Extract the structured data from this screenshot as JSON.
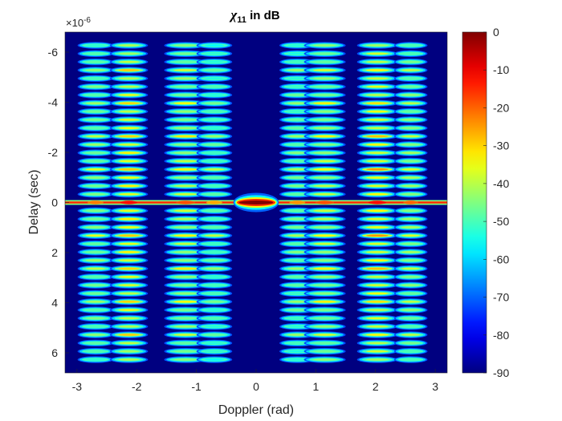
{
  "chart_data": {
    "type": "heatmap",
    "title_symbol": "χ",
    "title_subscript": "11",
    "title_suffix": " in dB",
    "xlabel": "Doppler (rad)",
    "ylabel": "Delay (sec)",
    "y_exponent_label": "×10",
    "y_exponent_power": "-6",
    "xlim": [
      -3.2,
      3.2
    ],
    "ylim": [
      -6.8,
      6.8
    ],
    "y_reversed": true,
    "x_ticks": [
      -3,
      -2,
      -1,
      0,
      1,
      2,
      3
    ],
    "x_tick_labels": [
      "-3",
      "-2",
      "-1",
      "0",
      "1",
      "2",
      "3"
    ],
    "y_ticks": [
      -6,
      -4,
      -2,
      0,
      2,
      4,
      6
    ],
    "y_tick_labels": [
      "-6",
      "-4",
      "-2",
      "0",
      "2",
      "4",
      "6"
    ],
    "colorbar": {
      "range": [
        -90,
        0
      ],
      "ticks": [
        0,
        -10,
        -20,
        -30,
        -40,
        -50,
        -60,
        -70,
        -80,
        -90
      ],
      "tick_labels": [
        "0",
        "-10",
        "-20",
        "-30",
        "-40",
        "-50",
        "-60",
        "-70",
        "-80",
        "-90"
      ],
      "colormap": "jet"
    },
    "background_level_db": -90,
    "doppler_lobe_columns": [
      {
        "center": -2.69,
        "half_width": 0.3,
        "peak_db": -32
      },
      {
        "center": -2.13,
        "half_width": 0.32,
        "peak_db": -22
      },
      {
        "center": -1.18,
        "half_width": 0.36,
        "peak_db": -28
      },
      {
        "center": -0.7,
        "half_width": 0.3,
        "peak_db": -36
      },
      {
        "center": 0.69,
        "half_width": 0.3,
        "peak_db": -34
      },
      {
        "center": 1.15,
        "half_width": 0.35,
        "peak_db": -28
      },
      {
        "center": 2.03,
        "half_width": 0.34,
        "peak_db": -22
      },
      {
        "center": 2.59,
        "half_width": 0.28,
        "peak_db": -30
      }
    ],
    "delay_sidelobe_spacing_sec": 3.3e-07,
    "mainlobe": {
      "doppler": 0,
      "delay": 0,
      "peak_db": 0,
      "doppler_half_width": 0.38
    },
    "zero_delay_cut_level_db": -15
  }
}
